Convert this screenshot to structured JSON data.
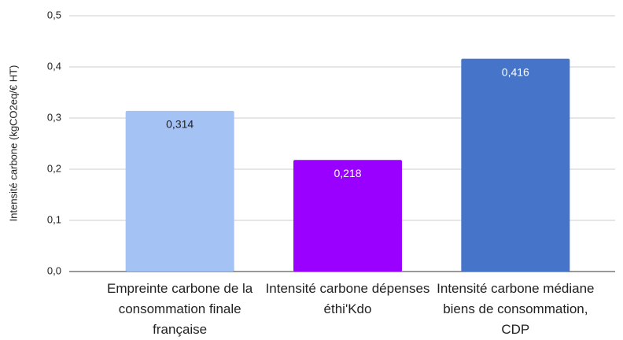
{
  "chart_data": {
    "type": "bar",
    "y_label": "Intensité carbone (kgCO2eq/€ HT)",
    "categories": [
      "Empreinte carbone de la consommation finale française",
      "Intensité carbone dépenses éthi'Kdo",
      "Intensité carbone médiane biens de consommation, CDP"
    ],
    "values": [
      0.314,
      0.218,
      0.416
    ],
    "value_labels": [
      "0,314",
      "0,218",
      "0,416"
    ],
    "colors": [
      "#a4c2f4",
      "#9900ff",
      "#4674c8"
    ],
    "ylim": [
      0,
      0.5
    ],
    "yticks": [
      {
        "value": 0,
        "label": "0,0"
      },
      {
        "value": 0.1,
        "label": "0,1"
      },
      {
        "value": 0.2,
        "label": "0,2"
      },
      {
        "value": 0.3,
        "label": "0,3"
      },
      {
        "value": 0.4,
        "label": "0,4"
      },
      {
        "value": 0.5,
        "label": "0,5"
      }
    ],
    "grid": true
  }
}
